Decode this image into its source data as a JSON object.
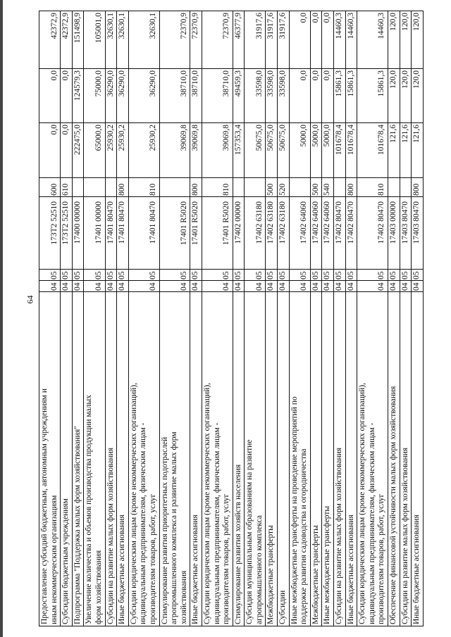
{
  "page_number": "64",
  "rows": [
    {
      "desc": "Предоставление субсидий бюджетным, автономным учреждениям и\nиным некоммерческим организациям",
      "r": "04",
      "p": "05",
      "csr": "173Т2  52510",
      "vr": "600",
      "v1": "0,0",
      "v2": "0,0",
      "v3": "42372,9"
    },
    {
      "desc": "Субсидии бюджетным учреждениям",
      "r": "04",
      "p": "05",
      "csr": "173Т2  52510",
      "vr": "610",
      "v1": "0,0",
      "v2": "0,0",
      "v3": "42372,9"
    },
    {
      "desc": "Подпрограмма \"Поддержка малых форм хозяйствования\"",
      "r": "04",
      "p": "05",
      "csr": "17400  00000",
      "vr": "",
      "v1": "222475,0",
      "v2": "124579,3",
      "v3": "151498,9"
    },
    {
      "desc": "Увеличение количества и объемов производства продукции малых\nформ хозяйствования",
      "r": "04",
      "p": "05",
      "csr": "17401  00000",
      "vr": "",
      "v1": "65000,0",
      "v2": "75000,0",
      "v3": "105001,0"
    },
    {
      "desc": "Субсидии на развитие малых форм хозяйствования",
      "r": "04",
      "p": "05",
      "csr": "17401  80470",
      "vr": "",
      "v1": "25930,2",
      "v2": "36290,0",
      "v3": "32630,1"
    },
    {
      "desc": "Иные бюджетные ассигнования",
      "r": "04",
      "p": "05",
      "csr": "17401  80470",
      "vr": "800",
      "v1": "25930,2",
      "v2": "36290,0",
      "v3": "32630,1"
    },
    {
      "desc": "Субсидии юридическим лицам (кроме некоммерческих организаций),\nиндивидуальным предпринимателям, физическим лицам -\nпроизводителям товаров, работ, услуг",
      "r": "04",
      "p": "05",
      "csr": "17401  80470",
      "vr": "810",
      "v1": "25930,2",
      "v2": "36290,0",
      "v3": "32630,1"
    },
    {
      "desc": "Стимулирование развития приоритетных подотраслей\nагропромышленного комплекса и развитие малых форм\nхозяйствования",
      "r": "04",
      "p": "05",
      "csr": "17401  R5020",
      "vr": "",
      "v1": "39069,8",
      "v2": "38710,0",
      "v3": "72370,9"
    },
    {
      "desc": "Иные бюджетные ассигнования",
      "r": "04",
      "p": "05",
      "csr": "17401  R5020",
      "vr": "800",
      "v1": "39069,8",
      "v2": "38710,0",
      "v3": "72370,9"
    },
    {
      "desc": "Субсидии юридическим лицам (кроме некоммерческих организаций),\nиндивидуальным предпринимателям, физическим лицам -\nпроизводителям товаров, работ, услуг",
      "r": "04",
      "p": "05",
      "csr": "17401  R5020",
      "vr": "810",
      "v1": "39069,8",
      "v2": "38710,0",
      "v3": "72370,9"
    },
    {
      "desc": "Стимулирование развития хозяйств населения",
      "r": "04",
      "p": "05",
      "csr": "17402  00000",
      "vr": "",
      "v1": "157353,4",
      "v2": "49459,3",
      "v3": "46377,9"
    },
    {
      "desc": "Субсидия муниципальным образованиям на развитие\nагропромышленного комплекса",
      "r": "04",
      "p": "05",
      "csr": "17402  63180",
      "vr": "",
      "v1": "50675,0",
      "v2": "33598,0",
      "v3": "31917,6"
    },
    {
      "desc": "Межбюджетные трансферты",
      "r": "04",
      "p": "05",
      "csr": "17402  63180",
      "vr": "500",
      "v1": "50675,0",
      "v2": "33598,0",
      "v3": "31917,6"
    },
    {
      "desc": "Субсидии",
      "r": "04",
      "p": "05",
      "csr": "17402  63180",
      "vr": "520",
      "v1": "50675,0",
      "v2": "33598,0",
      "v3": "31917,6"
    },
    {
      "desc": "Иные межбюджетные трансферты на проведение мероприятий по\nподдержке развития садоводства и   огородничества",
      "r": "04",
      "p": "05",
      "csr": "17402  64060",
      "vr": "",
      "v1": "5000,0",
      "v2": "0,0",
      "v3": "0,0"
    },
    {
      "desc": "Межбюджетные трансферты",
      "r": "04",
      "p": "05",
      "csr": "17402  64060",
      "vr": "500",
      "v1": "5000,0",
      "v2": "0,0",
      "v3": "0,0"
    },
    {
      "desc": "Иные межбюджетные трансферты",
      "r": "04",
      "p": "05",
      "csr": "17402  64060",
      "vr": "540",
      "v1": "5000,0",
      "v2": "0,0",
      "v3": "0,0"
    },
    {
      "desc": "Субсидии на развитие малых форм хозяйствования",
      "r": "04",
      "p": "05",
      "csr": "17402  80470",
      "vr": "",
      "v1": "101678,4",
      "v2": "15861,3",
      "v3": "14460,3"
    },
    {
      "desc": "Иные бюджетные ассигнования",
      "r": "04",
      "p": "05",
      "csr": "17402  80470",
      "vr": "800",
      "v1": "101678,4",
      "v2": "15861,3",
      "v3": "14460,3"
    },
    {
      "desc": "Субсидии юридическим лицам (кроме некоммерческих организаций),\nиндивидуальным предпринимателям, физическим лицам -\nпроизводителям товаров, работ, услуг",
      "r": "04",
      "p": "05",
      "csr": "17402  80470",
      "vr": "810",
      "v1": "101678,4",
      "v2": "15861,3",
      "v3": "14460,3"
    },
    {
      "desc": "Обеспечение финансовой устойчивости малых форм хозяйствования",
      "r": "04",
      "p": "05",
      "csr": "17403  00000",
      "vr": "",
      "v1": "121,6",
      "v2": "120,0",
      "v3": "120,0"
    },
    {
      "desc": "Субсидии на развитие малых форм хозяйствования",
      "r": "04",
      "p": "05",
      "csr": "17403  80470",
      "vr": "",
      "v1": "121,6",
      "v2": "120,0",
      "v3": "120,0"
    },
    {
      "desc": "Иные бюджетные ассигнования",
      "r": "04",
      "p": "05",
      "csr": "17403  80470",
      "vr": "800",
      "v1": "121,6",
      "v2": "120,0",
      "v3": "120,0"
    }
  ]
}
